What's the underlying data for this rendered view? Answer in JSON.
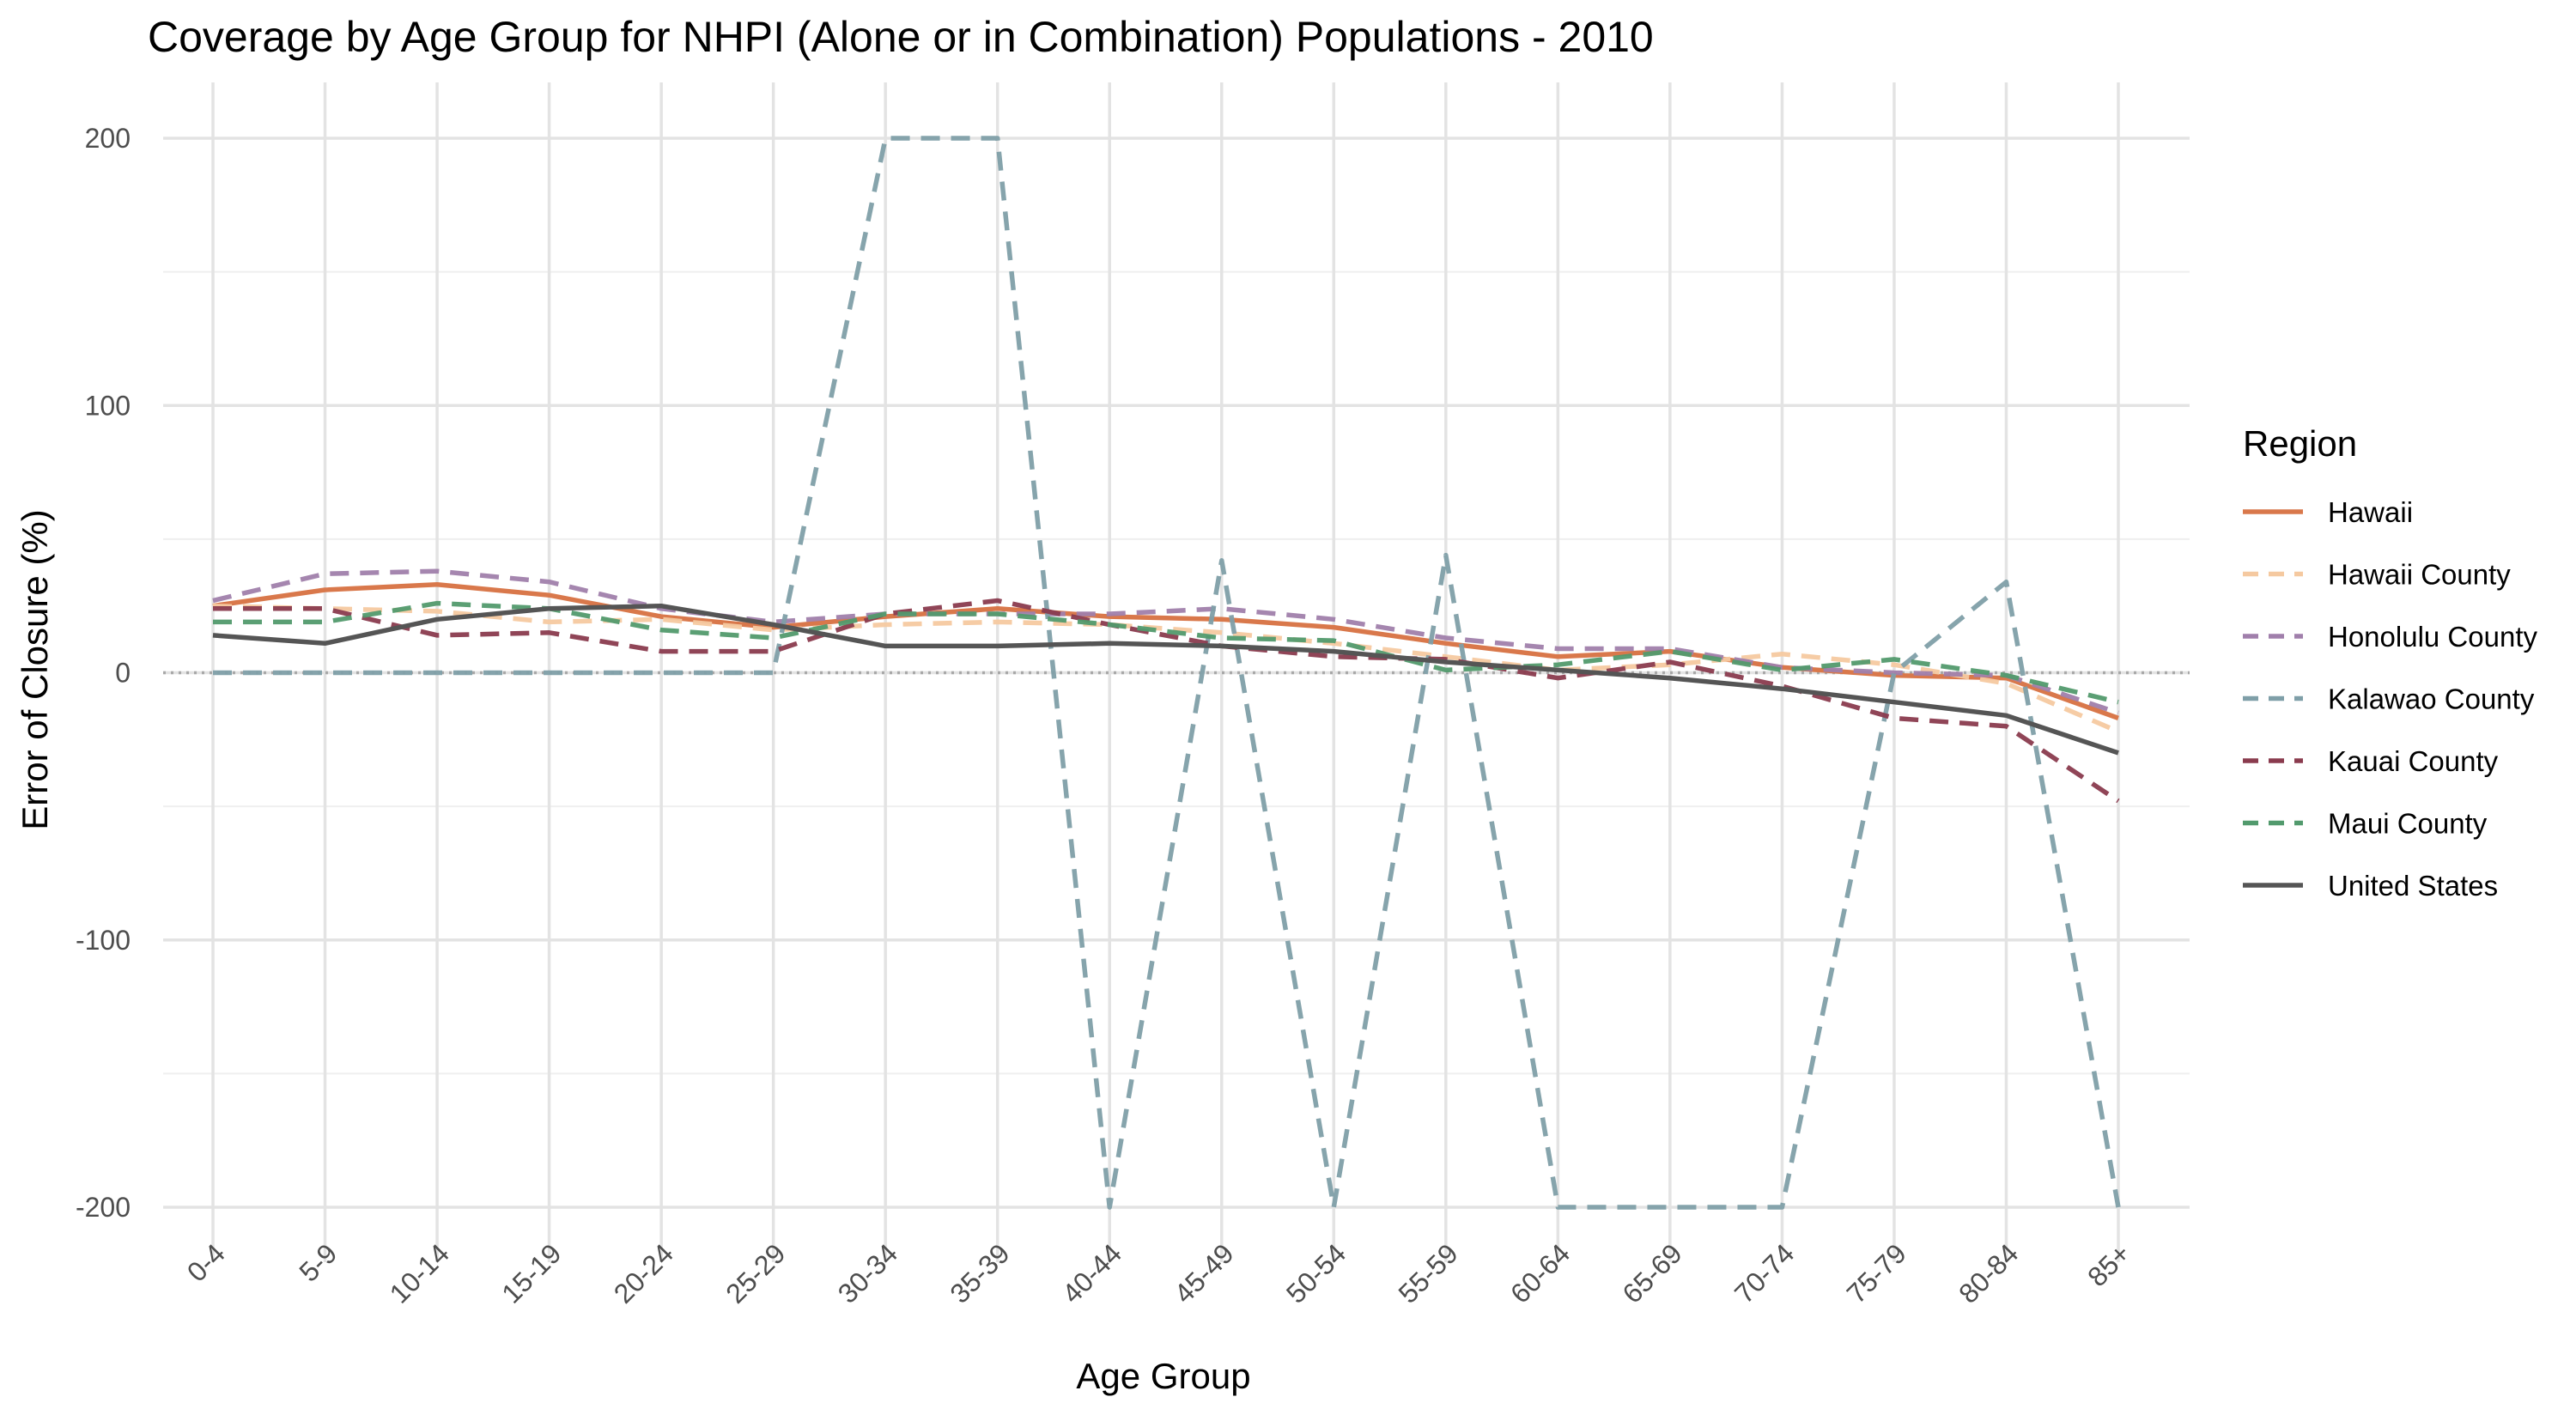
{
  "chart_data": {
    "type": "line",
    "title": "Coverage by Age Group for NHPI (Alone or in Combination) Populations - 2010",
    "xlabel": "Age Group",
    "ylabel": "Error of Closure (%)",
    "ylim": [
      -200,
      200
    ],
    "y_ticks": [
      -200,
      -100,
      0,
      100,
      200
    ],
    "y_tick_labels": [
      "-200",
      "-100",
      "0",
      "100",
      "200"
    ],
    "grid": true,
    "reference_line": 0,
    "legend": {
      "title": "Region",
      "position": "right"
    },
    "categories": [
      "0-4",
      "5-9",
      "10-14",
      "15-19",
      "20-24",
      "25-29",
      "30-34",
      "35-39",
      "40-44",
      "45-49",
      "50-54",
      "55-59",
      "60-64",
      "65-69",
      "70-74",
      "75-79",
      "80-84",
      "85+"
    ],
    "series": [
      {
        "name": "Hawaii",
        "color": "#d9784b",
        "dash": "solid",
        "values": [
          25,
          31,
          33,
          29,
          21,
          17,
          21,
          24,
          21,
          20,
          17,
          11,
          6,
          8,
          2,
          -1,
          -2,
          -17
        ]
      },
      {
        "name": "Hawaii County",
        "color": "#f5c9a0",
        "dash": "dashed",
        "values": [
          25,
          24,
          23,
          19,
          20,
          16,
          18,
          19,
          18,
          15,
          11,
          6,
          1,
          3,
          7,
          3,
          -4,
          -22
        ]
      },
      {
        "name": "Honolulu County",
        "color": "#a07fab",
        "dash": "dashed",
        "values": [
          27,
          37,
          38,
          34,
          24,
          19,
          22,
          22,
          22,
          24,
          20,
          13,
          9,
          9,
          2,
          0,
          -1,
          -15
        ]
      },
      {
        "name": "Kalawao County",
        "color": "#7f9fa8",
        "dash": "dashed",
        "values": [
          0,
          0,
          0,
          0,
          0,
          0,
          200,
          200,
          -200,
          42,
          -200,
          44,
          -200,
          -200,
          -200,
          0,
          34,
          -200
        ]
      },
      {
        "name": "Kauai County",
        "color": "#8a3b4e",
        "dash": "dashed",
        "values": [
          24,
          24,
          14,
          15,
          8,
          8,
          22,
          27,
          18,
          10,
          6,
          5,
          -2,
          4,
          -5,
          -17,
          -20,
          -48
        ]
      },
      {
        "name": "Maui County",
        "color": "#529a6d",
        "dash": "dashed",
        "values": [
          19,
          19,
          26,
          24,
          16,
          13,
          22,
          22,
          18,
          13,
          12,
          1,
          3,
          8,
          1,
          5,
          -1,
          -11
        ]
      },
      {
        "name": "United States",
        "color": "#555555",
        "dash": "solid",
        "values": [
          14,
          11,
          20,
          24,
          25,
          18,
          10,
          10,
          11,
          10,
          8,
          4,
          1,
          -2,
          -6,
          -11,
          -16,
          -30
        ]
      }
    ]
  }
}
